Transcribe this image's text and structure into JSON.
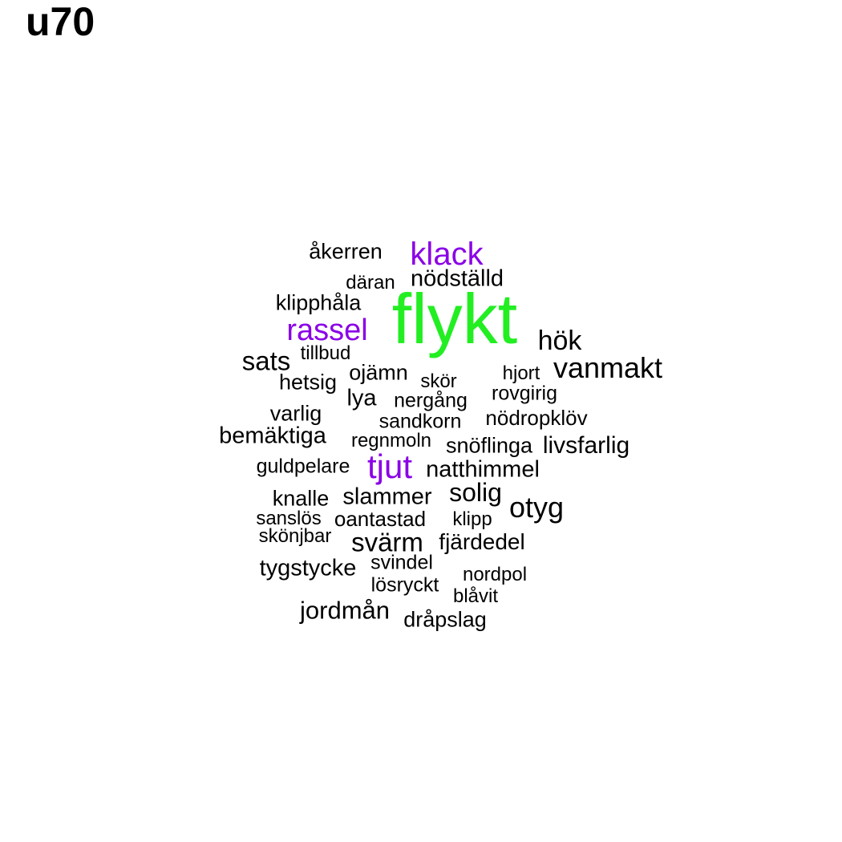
{
  "title": "u70",
  "colors": {
    "default": "#000000",
    "green": "#22ee22",
    "purple": "#8a00e6"
  },
  "words": [
    {
      "text": "flykt",
      "color": "green"
    },
    {
      "text": "klack",
      "color": "purple"
    },
    {
      "text": "rassel",
      "color": "purple"
    },
    {
      "text": "tjut",
      "color": "purple"
    },
    {
      "text": "åkerren",
      "color": "default"
    },
    {
      "text": "nödställd",
      "color": "default"
    },
    {
      "text": "däran",
      "color": "default"
    },
    {
      "text": "klipphåla",
      "color": "default"
    },
    {
      "text": "hök",
      "color": "default"
    },
    {
      "text": "sats",
      "color": "default"
    },
    {
      "text": "tillbud",
      "color": "default"
    },
    {
      "text": "vanmakt",
      "color": "default"
    },
    {
      "text": "hjort",
      "color": "default"
    },
    {
      "text": "ojämn",
      "color": "default"
    },
    {
      "text": "hetsig",
      "color": "default"
    },
    {
      "text": "skör",
      "color": "default"
    },
    {
      "text": "rovgirig",
      "color": "default"
    },
    {
      "text": "lya",
      "color": "default"
    },
    {
      "text": "nergång",
      "color": "default"
    },
    {
      "text": "varlig",
      "color": "default"
    },
    {
      "text": "sandkorn",
      "color": "default"
    },
    {
      "text": "nödropklöv",
      "color": "default"
    },
    {
      "text": "bemäktiga",
      "color": "default"
    },
    {
      "text": "regnmoln",
      "color": "default"
    },
    {
      "text": "snöflinga",
      "color": "default"
    },
    {
      "text": "livsfarlig",
      "color": "default"
    },
    {
      "text": "guldpelare",
      "color": "default"
    },
    {
      "text": "natthimmel",
      "color": "default"
    },
    {
      "text": "solig",
      "color": "default"
    },
    {
      "text": "knalle",
      "color": "default"
    },
    {
      "text": "slammer",
      "color": "default"
    },
    {
      "text": "otyg",
      "color": "default"
    },
    {
      "text": "sanslös",
      "color": "default"
    },
    {
      "text": "oantastad",
      "color": "default"
    },
    {
      "text": "klipp",
      "color": "default"
    },
    {
      "text": "skönjbar",
      "color": "default"
    },
    {
      "text": "svärm",
      "color": "default"
    },
    {
      "text": "fjärdedel",
      "color": "default"
    },
    {
      "text": "tygstycke",
      "color": "default"
    },
    {
      "text": "svindel",
      "color": "default"
    },
    {
      "text": "nordpol",
      "color": "default"
    },
    {
      "text": "lösryckt",
      "color": "default"
    },
    {
      "text": "blåvit",
      "color": "default"
    },
    {
      "text": "jordmån",
      "color": "default"
    },
    {
      "text": "dråpslag",
      "color": "default"
    }
  ]
}
